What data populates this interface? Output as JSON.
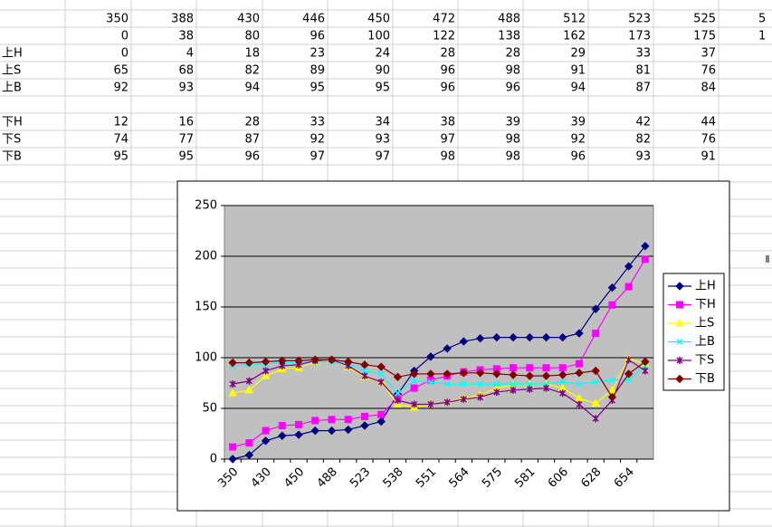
{
  "sheet": {
    "rows": [
      {
        "label": null,
        "cells": [
          350,
          388,
          430,
          446,
          450,
          472,
          488,
          512,
          523,
          525,
          "5"
        ]
      },
      {
        "label": null,
        "cells": [
          0,
          38,
          80,
          96,
          100,
          122,
          138,
          162,
          173,
          175,
          "1"
        ]
      },
      {
        "label": "上H",
        "cells": [
          0,
          4,
          18,
          23,
          24,
          28,
          28,
          29,
          33,
          37
        ]
      },
      {
        "label": "上S",
        "cells": [
          65,
          68,
          82,
          89,
          90,
          96,
          98,
          91,
          81,
          76
        ]
      },
      {
        "label": "上B",
        "cells": [
          92,
          93,
          94,
          95,
          95,
          96,
          96,
          94,
          87,
          84
        ]
      },
      {
        "label": null,
        "cells": []
      },
      {
        "label": "下H",
        "cells": [
          12,
          16,
          28,
          33,
          34,
          38,
          39,
          39,
          42,
          44
        ]
      },
      {
        "label": "下S",
        "cells": [
          74,
          77,
          87,
          92,
          93,
          97,
          98,
          92,
          82,
          76
        ]
      },
      {
        "label": "下B",
        "cells": [
          95,
          95,
          96,
          97,
          97,
          98,
          98,
          96,
          93,
          91
        ]
      }
    ]
  },
  "chart_data": {
    "type": "line",
    "categories": [
      "350",
      null,
      "430",
      null,
      "450",
      null,
      "488",
      null,
      "523",
      null,
      "538",
      null,
      "551",
      null,
      "564",
      null,
      "575",
      null,
      "581",
      null,
      "606",
      null,
      "628",
      null,
      "654",
      null
    ],
    "ylim": [
      0,
      250
    ],
    "yticks": [
      0,
      50,
      100,
      150,
      200,
      250
    ],
    "grid": true,
    "legend": "right",
    "series": [
      {
        "name": "上H",
        "color": "#000080",
        "marker": "diamond",
        "values": [
          0,
          4,
          18,
          23,
          24,
          28,
          28,
          29,
          33,
          37,
          64,
          87,
          101,
          109,
          116,
          119,
          120,
          120,
          120,
          120,
          120,
          124,
          148,
          169,
          190,
          210
        ]
      },
      {
        "name": "下H",
        "color": "#ff00ff",
        "marker": "square",
        "values": [
          12,
          16,
          28,
          33,
          34,
          38,
          39,
          39,
          42,
          44,
          60,
          70,
          78,
          82,
          86,
          88,
          89,
          90,
          90,
          90,
          90,
          94,
          124,
          152,
          170,
          197
        ]
      },
      {
        "name": "上S",
        "color": "#ffff00",
        "marker": "triangle",
        "values": [
          65,
          68,
          82,
          89,
          90,
          96,
          98,
          91,
          81,
          76,
          54,
          51,
          54,
          56,
          60,
          63,
          70,
          73,
          74,
          74,
          70,
          60,
          55,
          68,
          99,
          94
        ]
      },
      {
        "name": "上B",
        "color": "#00ffff",
        "marker": "x",
        "values": [
          92,
          93,
          94,
          95,
          95,
          96,
          96,
          94,
          87,
          84,
          65,
          77,
          76,
          74,
          74,
          74,
          74,
          74,
          74,
          74,
          76,
          74,
          76,
          78,
          78,
          92
        ]
      },
      {
        "name": "下S",
        "color": "#800080",
        "marker": "star",
        "values": [
          74,
          77,
          87,
          92,
          93,
          97,
          98,
          92,
          82,
          76,
          58,
          54,
          54,
          56,
          59,
          61,
          66,
          68,
          69,
          70,
          65,
          54,
          40,
          58,
          98,
          87
        ]
      },
      {
        "name": "下B",
        "color": "#800000",
        "marker": "diamond",
        "values": [
          95,
          95,
          96,
          97,
          97,
          98,
          98,
          96,
          93,
          91,
          81,
          84,
          84,
          84,
          85,
          85,
          84,
          83,
          82,
          82,
          83,
          85,
          87,
          61,
          84,
          96
        ]
      }
    ]
  }
}
